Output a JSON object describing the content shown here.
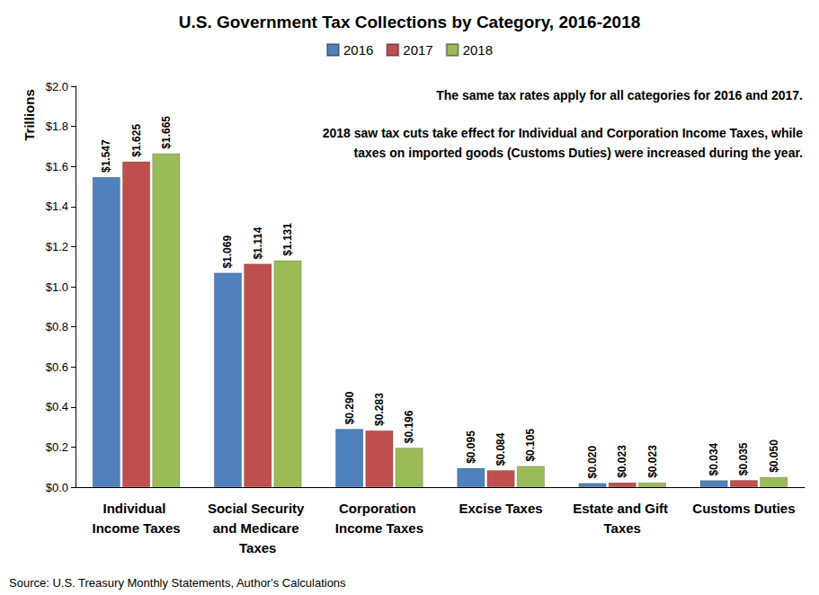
{
  "chart_data": {
    "type": "bar",
    "title": "U.S. Government Tax Collections by Category, 2016-2018",
    "ylabel": "Trillions",
    "annotations": [
      "The same tax rates apply for all categories for 2016 and 2017.",
      "2018 saw tax cuts take effect for Individual and Corporation Income Taxes, while",
      "taxes on imported goods (Customs Duties) were increased during the year."
    ],
    "source": "Source: U.S. Treasury Monthly Statements, Author's Calculations",
    "categories": [
      "Individual Income Taxes",
      "Social Security and Medicare Taxes",
      "Corporation Income Taxes",
      "Excise Taxes",
      "Estate and Gift Taxes",
      "Customs Duties"
    ],
    "series": [
      {
        "name": "2016",
        "color": "#4f81bd",
        "values": [
          1.547,
          1.069,
          0.29,
          0.095,
          0.02,
          0.034
        ],
        "value_labels": [
          "$1.547",
          "$1.069",
          "$0.290",
          "$0.095",
          "$0.020",
          "$0.034"
        ]
      },
      {
        "name": "2017",
        "color": "#c0504d",
        "values": [
          1.625,
          1.114,
          0.283,
          0.084,
          0.023,
          0.035
        ],
        "value_labels": [
          "$1.625",
          "$1.114",
          "$0.283",
          "$0.084",
          "$0.023",
          "$0.035"
        ]
      },
      {
        "name": "2018",
        "color": "#9bbb59",
        "values": [
          1.665,
          1.131,
          0.196,
          0.105,
          0.023,
          0.05
        ],
        "value_labels": [
          "$1.665",
          "$1.131",
          "$0.196",
          "$0.105",
          "$0.023",
          "$0.050"
        ]
      }
    ],
    "ylim": [
      0,
      2.0
    ],
    "yticks": [
      {
        "value": 0,
        "label": "$0.0"
      },
      {
        "value": 0.2,
        "label": "$0.2"
      },
      {
        "value": 0.4,
        "label": "$0.4"
      },
      {
        "value": 0.6,
        "label": "$0.6"
      },
      {
        "value": 0.8,
        "label": "$0.8"
      },
      {
        "value": 1.0,
        "label": "$1.0"
      },
      {
        "value": 1.2,
        "label": "$1.2"
      },
      {
        "value": 1.4,
        "label": "$1.4"
      },
      {
        "value": 1.6,
        "label": "$1.6"
      },
      {
        "value": 1.8,
        "label": "$1.8"
      },
      {
        "value": 2.0,
        "label": "$2.0"
      }
    ],
    "grid": false,
    "legend": "top",
    "data_labels": true
  }
}
